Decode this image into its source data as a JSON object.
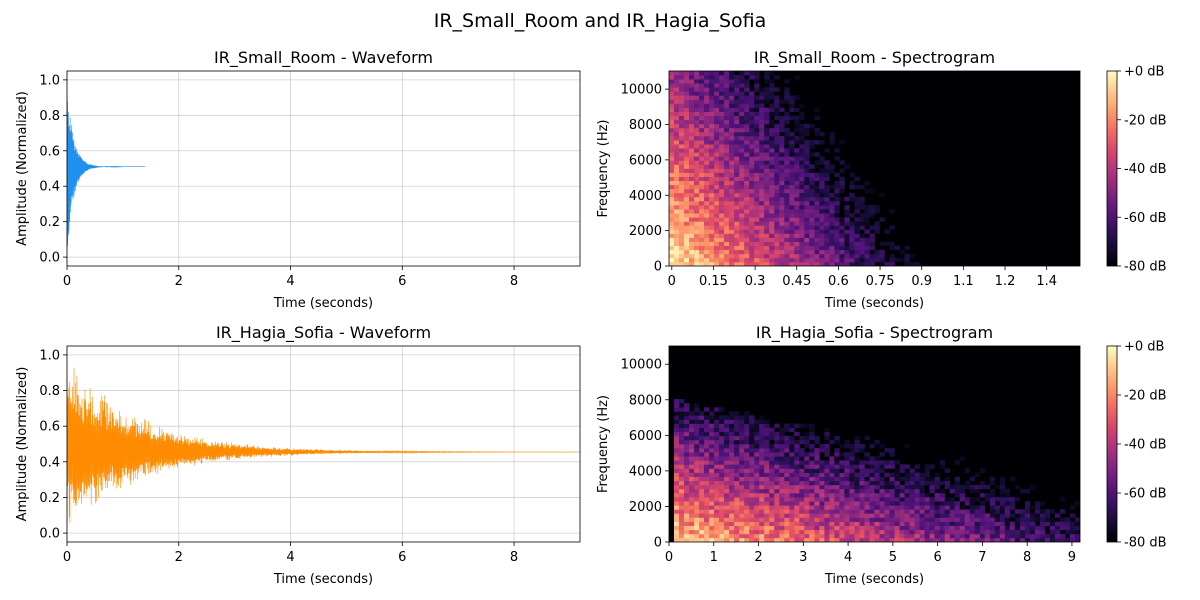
{
  "figure": {
    "suptitle": "IR_Small_Room and IR_Hagia_Sofia",
    "colors": {
      "small_room_waveform": "#1f8ff2",
      "hagia_sofia_waveform": "#ff8c00",
      "spectrogram_colormap": "magma"
    }
  },
  "chart_data": [
    {
      "id": "small_waveform",
      "type": "line",
      "title": "IR_Small_Room - Waveform",
      "xlabel": "Time (seconds)",
      "ylabel": "Amplitude (Normalized)",
      "xlim": [
        0,
        9.18
      ],
      "ylim": [
        -0.05,
        1.05
      ],
      "xticks": [
        0,
        2,
        4,
        6,
        8
      ],
      "yticks": [
        0.0,
        0.2,
        0.4,
        0.6,
        0.8,
        1.0
      ],
      "ytick_labels": [
        "0.0",
        "0.2",
        "0.4",
        "0.6",
        "0.8",
        "1.0"
      ],
      "grid": true,
      "color": "#1f8ff2",
      "signal": {
        "duration": 1.4,
        "baseline": 0.51,
        "peak_upper": 1.0,
        "peak_lower": 0.0,
        "decay_time": 0.12
      }
    },
    {
      "id": "small_spectrogram",
      "type": "heatmap",
      "title": "IR_Small_Room - Spectrogram",
      "xlabel": "Time (seconds)",
      "ylabel": "Frequency (Hz)",
      "xlim": [
        -0.01,
        1.47
      ],
      "ylim": [
        0,
        11025
      ],
      "xticks": [
        0,
        0.15,
        0.3,
        0.45,
        0.6,
        0.75,
        0.9,
        1.05,
        1.2,
        1.35
      ],
      "xtick_labels": [
        "0",
        "0.15",
        "0.3",
        "0.45",
        "0.6",
        "0.75",
        "0.9",
        "1.1",
        "1.2",
        "1.4"
      ],
      "yticks": [
        0,
        2000,
        4000,
        6000,
        8000,
        10000
      ],
      "colorbar": {
        "range_db": [
          -80,
          0
        ],
        "ticks": [
          "+0 dB",
          "-20 dB",
          "-40 dB",
          "-60 dB",
          "-80 dB"
        ]
      },
      "colormap": "magma"
    },
    {
      "id": "hagia_waveform",
      "type": "line",
      "title": "IR_Hagia_Sofia - Waveform",
      "xlabel": "Time (seconds)",
      "ylabel": "Amplitude (Normalized)",
      "xlim": [
        0,
        9.18
      ],
      "ylim": [
        -0.05,
        1.05
      ],
      "xticks": [
        0,
        2,
        4,
        6,
        8
      ],
      "yticks": [
        0.0,
        0.2,
        0.4,
        0.6,
        0.8,
        1.0
      ],
      "ytick_labels": [
        "0.0",
        "0.2",
        "0.4",
        "0.6",
        "0.8",
        "1.0"
      ],
      "grid": true,
      "color": "#ff8c00",
      "signal": {
        "duration": 9.18,
        "baseline": 0.455,
        "peak_upper": 1.0,
        "peak_lower": 0.0,
        "decay_time": 1.3
      }
    },
    {
      "id": "hagia_spectrogram",
      "type": "heatmap",
      "title": "IR_Hagia_Sofia - Spectrogram",
      "xlabel": "Time (seconds)",
      "ylabel": "Frequency (Hz)",
      "xlim": [
        0,
        9.18
      ],
      "ylim": [
        0,
        11025
      ],
      "xticks": [
        0,
        1,
        2,
        3,
        4,
        5,
        6,
        7,
        8,
        9
      ],
      "xtick_labels": [
        "0",
        "1",
        "2",
        "3",
        "4",
        "5",
        "6",
        "7",
        "8",
        "9"
      ],
      "yticks": [
        0,
        2000,
        4000,
        6000,
        8000,
        10000
      ],
      "colorbar": {
        "range_db": [
          -80,
          0
        ],
        "ticks": [
          "+0 dB",
          "-20 dB",
          "-40 dB",
          "-60 dB",
          "-80 dB"
        ]
      },
      "colormap": "magma"
    }
  ]
}
